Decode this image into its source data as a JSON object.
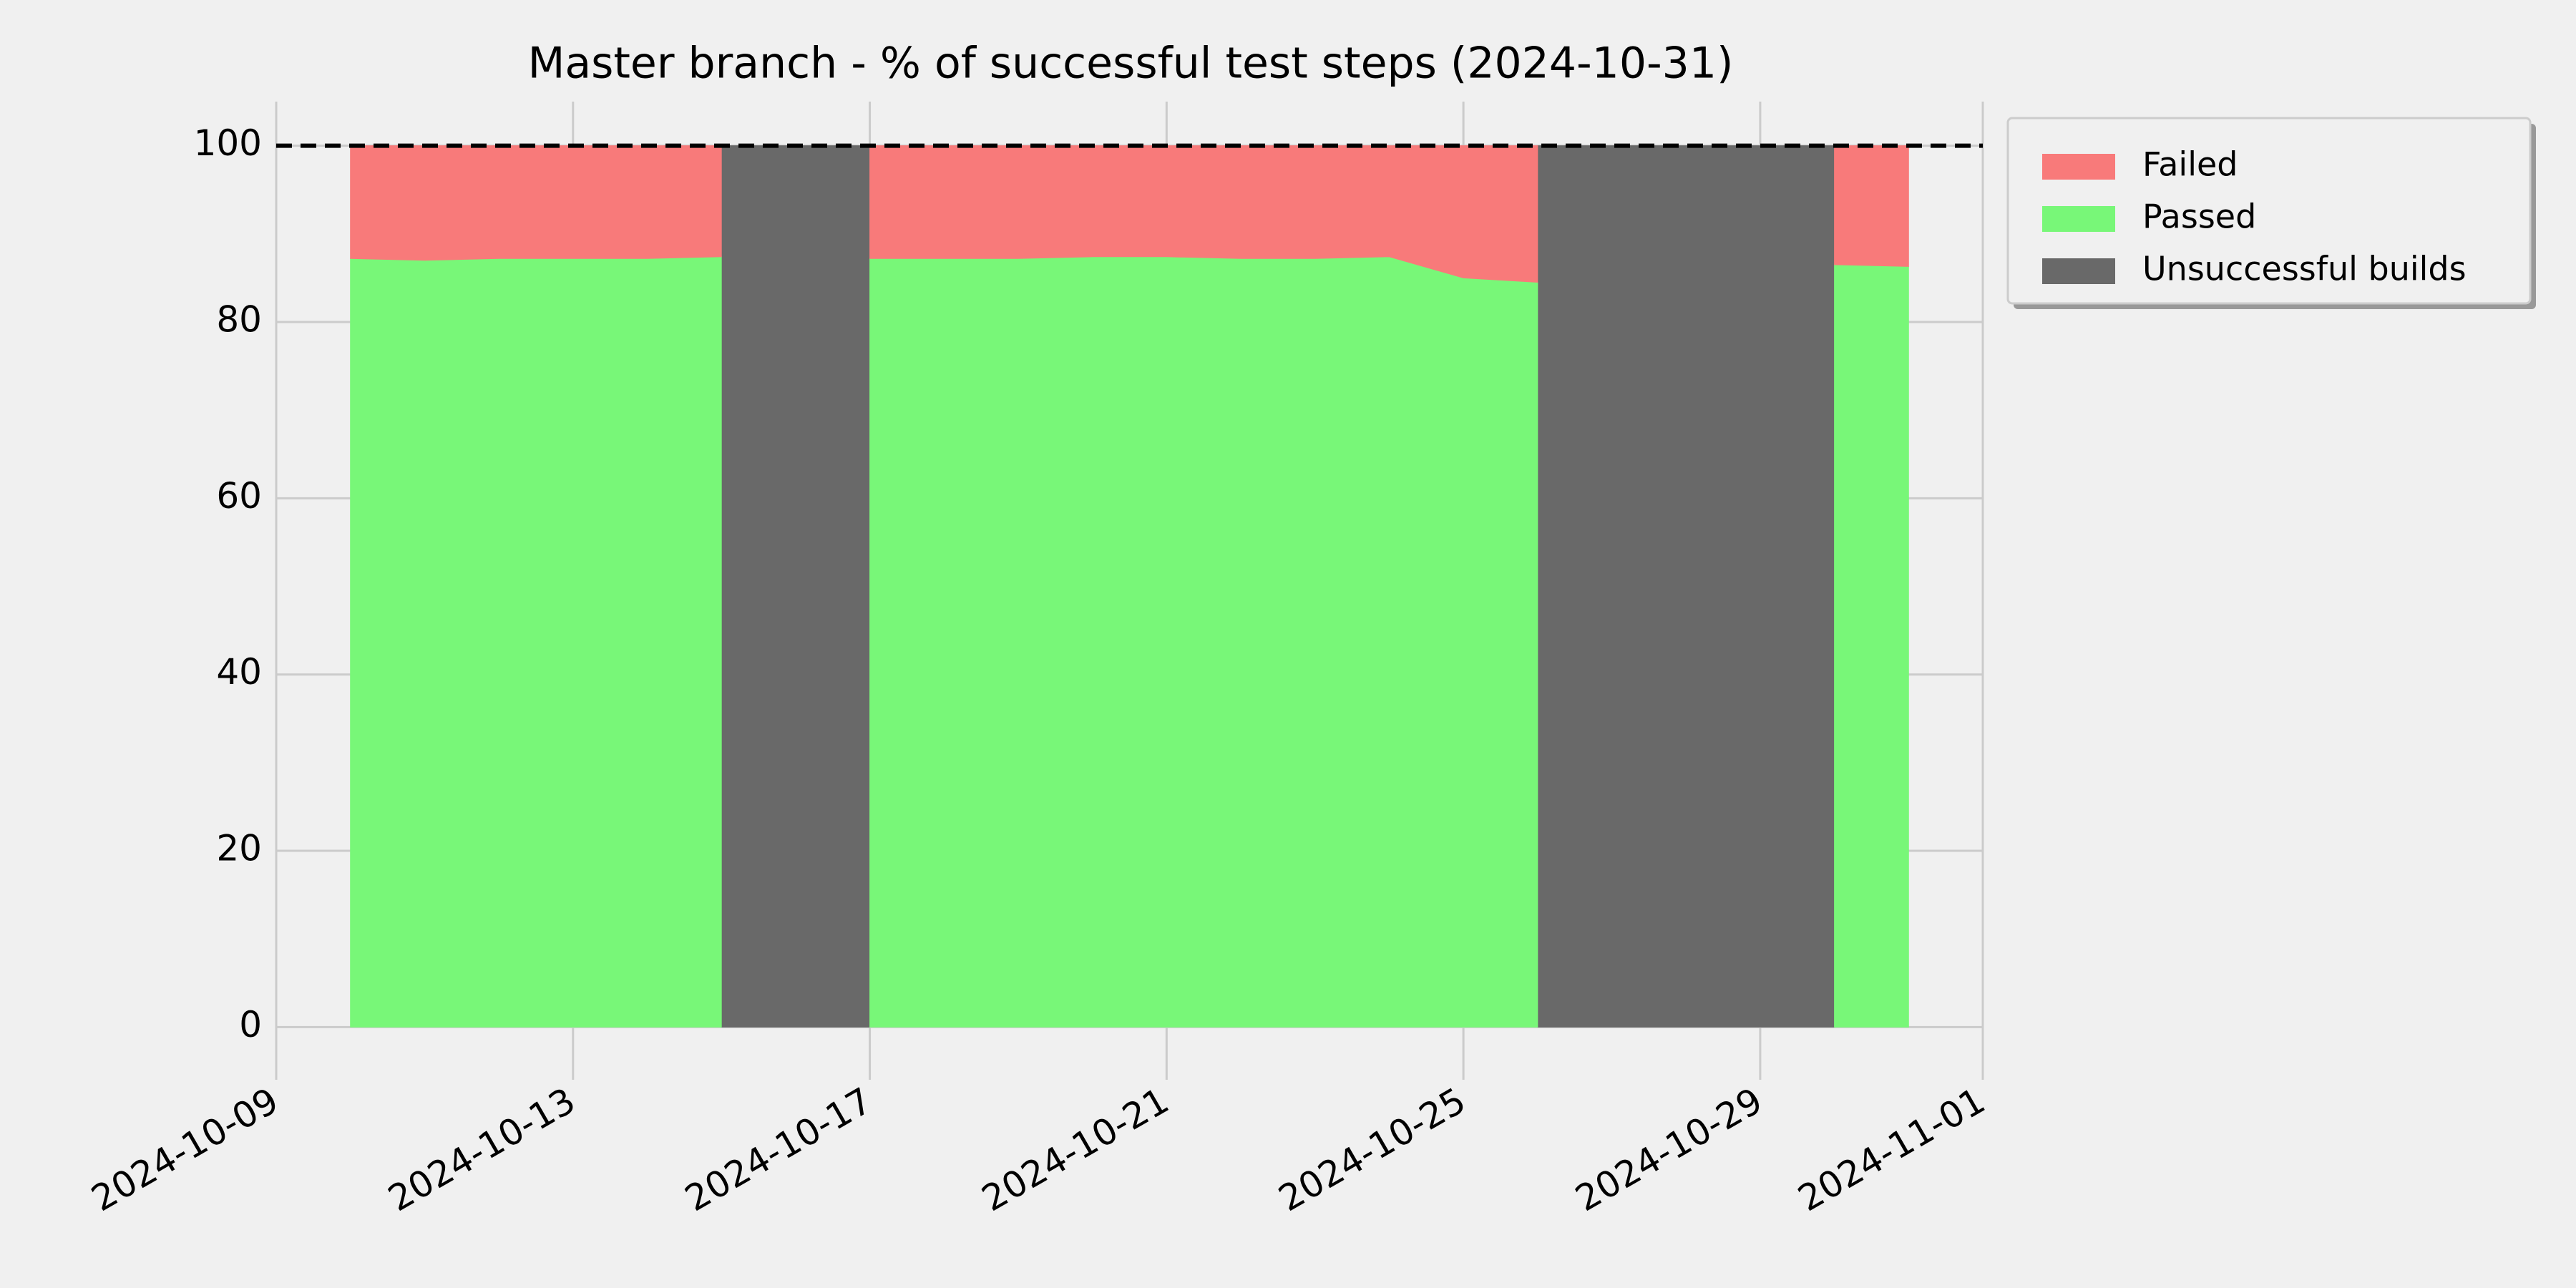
{
  "chart_data": {
    "type": "area",
    "title": "Master branch - % of successful test steps (2024-10-31)",
    "x": [
      "2024-10-10",
      "2024-10-11",
      "2024-10-12",
      "2024-10-13",
      "2024-10-14",
      "2024-10-15",
      "2024-10-16",
      "2024-10-17",
      "2024-10-18",
      "2024-10-19",
      "2024-10-20",
      "2024-10-21",
      "2024-10-22",
      "2024-10-23",
      "2024-10-24",
      "2024-10-25",
      "2024-10-26",
      "2024-10-27",
      "2024-10-28",
      "2024-10-29",
      "2024-10-30",
      "2024-10-31"
    ],
    "series": [
      {
        "name": "Failed",
        "color": "#f87a7a",
        "stacked": true,
        "values": [
          12.8,
          13.0,
          12.8,
          12.8,
          12.8,
          12.6,
          null,
          12.8,
          12.8,
          12.8,
          12.6,
          12.6,
          12.8,
          12.8,
          12.6,
          15.0,
          15.5,
          null,
          null,
          null,
          13.5,
          13.7
        ]
      },
      {
        "name": "Passed",
        "color": "#78f778",
        "stacked": true,
        "values": [
          87.2,
          87.0,
          87.2,
          87.2,
          87.2,
          87.4,
          null,
          87.2,
          87.2,
          87.2,
          87.4,
          87.4,
          87.2,
          87.2,
          87.4,
          85.0,
          84.5,
          null,
          null,
          null,
          86.5,
          86.3
        ]
      },
      {
        "name": "Unsuccessful builds",
        "color": "#696969",
        "stacked": false,
        "values": [
          null,
          null,
          null,
          null,
          null,
          100,
          100,
          100,
          null,
          null,
          null,
          null,
          null,
          null,
          null,
          null,
          100,
          100,
          100,
          100,
          100,
          null
        ]
      }
    ],
    "reference_line": 100,
    "xlim": [
      "2024-10-09",
      "2024-11-01"
    ],
    "xticks": [
      "2024-10-09",
      "2024-10-13",
      "2024-10-17",
      "2024-10-21",
      "2024-10-25",
      "2024-10-29",
      "2024-11-01"
    ],
    "ylim": [
      -5,
      105
    ],
    "yticks": [
      0,
      20,
      40,
      60,
      80,
      100
    ],
    "grid": true,
    "legend": "outside upper right"
  }
}
